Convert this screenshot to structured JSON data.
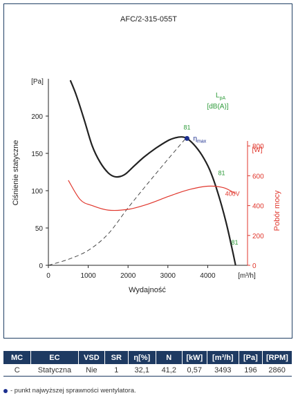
{
  "colors": {
    "fan_curve": "#222222",
    "efficiency_line": "#333333",
    "power_curve": "#e0352b",
    "sound_label": "#2e9b3a",
    "max_point": "#1c2f8f",
    "table_header": "#1e3a62"
  },
  "chart_data": {
    "type": "line",
    "title": "AFC/2-315-055T",
    "xlabel": "Wydajność",
    "ylabel": "Ciśnienie statyczne",
    "y2label": "Pobór mocy",
    "x_unit": "[m³/h]",
    "y_unit": "[Pa]",
    "y2_unit": "[W]",
    "sound_unit_l1": "L",
    "sound_unit_sub": "pA",
    "sound_unit_l2": "[dB(A)]",
    "xlim": [
      0,
      5000
    ],
    "ylim": [
      0,
      250
    ],
    "y2lim": [
      0,
      1250
    ],
    "x_ticks": [
      "0",
      "1000",
      "2000",
      "3000",
      "4000"
    ],
    "y_ticks": [
      "0",
      "50",
      "100",
      "150",
      "200"
    ],
    "y2_ticks": [
      "0",
      "200",
      "400",
      "600",
      "800"
    ],
    "grid": false,
    "series": [
      {
        "name": "",
        "axis": "left",
        "style": "solid",
        "x": [
          550,
          700,
          900,
          1100,
          1300,
          1500,
          1650,
          1800,
          1950,
          2150,
          2400,
          2700,
          3000,
          3200,
          3350,
          3480,
          3650,
          3850,
          4050,
          4250,
          4450,
          4600,
          4700
        ],
        "y": [
          248,
          228,
          195,
          160,
          138,
          124,
          119,
          119,
          123,
          133,
          145,
          157,
          167,
          171,
          172,
          170,
          162,
          148,
          128,
          98,
          60,
          25,
          0
        ]
      },
      {
        "name": "",
        "axis": "left",
        "style": "dashed",
        "x": [
          0,
          500,
          1000,
          1500,
          2000,
          2500,
          3000,
          3480
        ],
        "y": [
          0,
          8,
          20,
          42,
          77,
          110,
          142,
          172
        ]
      },
      {
        "name": "400V",
        "axis": "right",
        "style": "solid",
        "x": [
          500,
          800,
          1100,
          1500,
          2000,
          2500,
          3000,
          3500,
          4000,
          4400,
          4700
        ],
        "y": [
          570,
          440,
          400,
          370,
          375,
          410,
          460,
          505,
          530,
          520,
          480
        ]
      }
    ],
    "max_efficiency_point": {
      "x": 3480,
      "y": 170,
      "label": "η",
      "label_sub": "max"
    },
    "sound_labels": [
      {
        "text": "81",
        "x": 3480,
        "y": 182
      },
      {
        "text": "81",
        "x": 4350,
        "y": 121
      },
      {
        "text": "81",
        "x": 4680,
        "y": 28
      }
    ],
    "power_series_label": {
      "text": "400V",
      "x": 4620,
      "y": 93
    }
  },
  "table": {
    "headers": [
      "MC",
      "EC",
      "VSD",
      "SR",
      "η[%]",
      "N",
      "[kW]",
      "[m³/h]",
      "[Pa]",
      "[RPM]"
    ],
    "row": [
      "C",
      "Statyczna",
      "Nie",
      "1",
      "32,1",
      "41,2",
      "0,57",
      "3493",
      "196",
      "2860"
    ]
  },
  "footnote": "- punkt najwyższej sprawności wentylatora."
}
